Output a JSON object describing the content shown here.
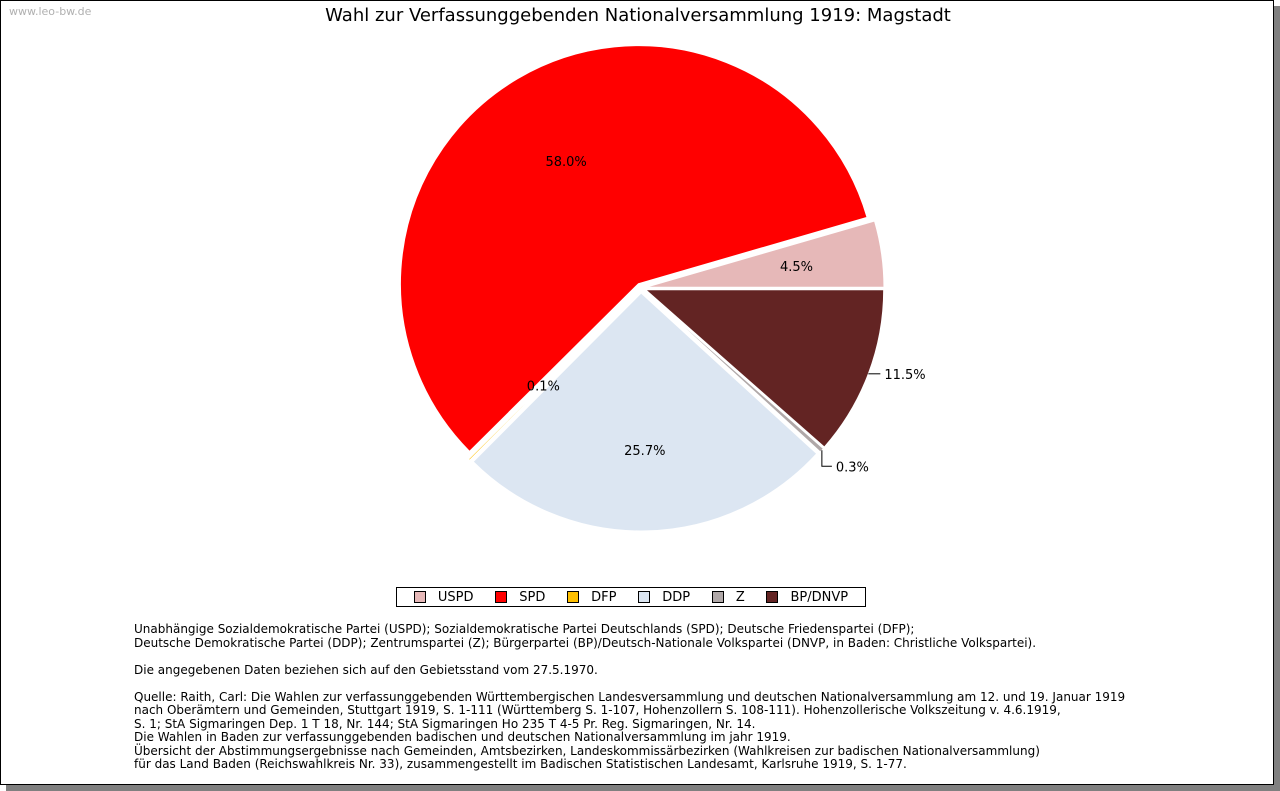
{
  "watermark": "www.leo-bw.de",
  "chart_data": {
    "type": "pie",
    "title": "Wahl zur Verfassunggebenden Nationalversammlung 1919: Magstadt",
    "slices": [
      {
        "name": "USPD",
        "value": 4.5,
        "label": "4.5%",
        "color": "#e6b8b8"
      },
      {
        "name": "SPD",
        "value": 58.0,
        "label": "58.0%",
        "color": "#ff0000"
      },
      {
        "name": "DFP",
        "value": 0.1,
        "label": "0.1%",
        "color": "#ffc000"
      },
      {
        "name": "DDP",
        "value": 25.7,
        "label": "25.7%",
        "color": "#dce6f2"
      },
      {
        "name": "Z",
        "value": 0.3,
        "label": "0.3%",
        "color": "#b0a8a8"
      },
      {
        "name": "BP/DNVP",
        "value": 11.5,
        "label": "11.5%",
        "color": "#632423"
      }
    ],
    "legend": "bottom"
  },
  "notes": {
    "parties": [
      "Unabhängige Sozialdemokratische Partei (USPD); Sozialdemokratische Partei Deutschlands (SPD); Deutsche Friedenspartei (DFP);",
      "Deutsche Demokratische Partei (DDP); Zentrumspartei (Z); Bürgerpartei (BP)/Deutsch-Nationale Volkspartei (DNVP, in Baden: Christliche Volkspartei)."
    ],
    "territory": "Die angegebenen Daten beziehen sich auf den Gebietsstand vom 27.5.1970.",
    "source": [
      "Quelle: Raith, Carl: Die Wahlen zur verfassunggebenden Württembergischen Landesversammlung und deutschen Nationalversammlung am 12. und 19. Januar 1919",
      "nach Oberämtern und Gemeinden, Stuttgart 1919, S. 1-111 (Württemberg S. 1-107, Hohenzollern S. 108-111). Hohenzollerische Volkszeitung v. 4.6.1919,",
      "S. 1; StA Sigmaringen Dep. 1 T 18, Nr. 144; StA Sigmaringen Ho 235 T 4-5 Pr. Reg. Sigmaringen, Nr. 14.",
      "Die Wahlen in Baden zur verfassunggebenden badischen und deutschen Nationalversammlung im jahr 1919.",
      "Übersicht der Abstimmungsergebnisse nach Gemeinden, Amtsbezirken, Landeskommissärbezirken (Wahlkreisen zur badischen Nationalversammlung)",
      "für das Land Baden (Reichswahlkreis Nr. 33), zusammengestellt im Badischen Statistischen Landesamt, Karlsruhe 1919, S. 1-77."
    ]
  }
}
